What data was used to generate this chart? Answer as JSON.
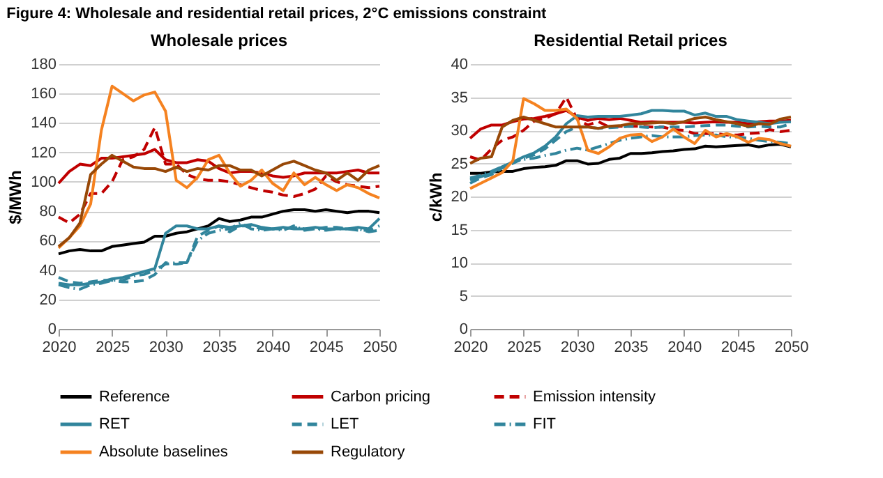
{
  "chart_data": [
    {
      "type": "line",
      "title": "Wholesale prices",
      "ylabel": "$/MWh",
      "annotations": [
        "Figure 4: Wholesale and residential retail prices, 2°C emissions constraint"
      ],
      "x": [
        2020,
        2021,
        2022,
        2023,
        2024,
        2025,
        2026,
        2027,
        2028,
        2029,
        2030,
        2031,
        2032,
        2033,
        2034,
        2035,
        2036,
        2037,
        2038,
        2039,
        2040,
        2041,
        2042,
        2043,
        2044,
        2045,
        2046,
        2047,
        2048,
        2049,
        2050
      ],
      "xlim": [
        2020,
        2050
      ],
      "xticks": [
        2020,
        2025,
        2030,
        2035,
        2040,
        2045,
        2050
      ],
      "ylim": [
        0,
        180
      ],
      "yticks": [
        0,
        20,
        40,
        60,
        80,
        100,
        120,
        140,
        160,
        180
      ],
      "grid": "y",
      "legend": "bottom",
      "marker": "none",
      "series": [
        {
          "name": "Reference",
          "color": "#000000",
          "line_style": "solid",
          "values": [
            51,
            53,
            54,
            53,
            53,
            56,
            57,
            58,
            59,
            63,
            63,
            65,
            66,
            68,
            70,
            75,
            73,
            74,
            76,
            76,
            78,
            80,
            81,
            81,
            80,
            81,
            80,
            79,
            80,
            80,
            79
          ]
        },
        {
          "name": "Carbon pricing",
          "color": "#c00000",
          "line_style": "solid",
          "values": [
            99,
            107,
            112,
            111,
            116,
            116,
            117,
            118,
            119,
            122,
            115,
            113,
            113,
            115,
            114,
            109,
            106,
            107,
            107,
            106,
            104,
            103,
            104,
            106,
            106,
            106,
            106,
            107,
            108,
            106,
            106
          ]
        },
        {
          "name": "Emission intensity",
          "color": "#c00000",
          "line_style": "dashed",
          "values": [
            76,
            72,
            78,
            92,
            92,
            100,
            115,
            117,
            122,
            137,
            112,
            112,
            105,
            102,
            101,
            101,
            100,
            98,
            96,
            94,
            93,
            91,
            90,
            92,
            95,
            104,
            100,
            98,
            97,
            96,
            97
          ]
        },
        {
          "name": "RET",
          "color": "#31859c",
          "line_style": "solid",
          "values": [
            31,
            30,
            30,
            31,
            32,
            34,
            35,
            37,
            39,
            41,
            65,
            70,
            70,
            68,
            68,
            70,
            69,
            70,
            71,
            69,
            68,
            69,
            68,
            68,
            69,
            68,
            68,
            68,
            69,
            68,
            75
          ]
        },
        {
          "name": "LET",
          "color": "#31859c",
          "line_style": "dashed",
          "values": [
            35,
            32,
            31,
            32,
            33,
            33,
            32,
            32,
            33,
            37,
            45,
            44,
            45,
            63,
            67,
            70,
            66,
            70,
            70,
            68,
            68,
            68,
            69,
            68,
            68,
            69,
            69,
            68,
            67,
            67,
            70
          ]
        },
        {
          "name": "FIT",
          "color": "#31859c",
          "line_style": "dashdot",
          "values": [
            30,
            28,
            27,
            30,
            31,
            33,
            33,
            36,
            37,
            40,
            44,
            45,
            45,
            60,
            65,
            67,
            68,
            72,
            68,
            67,
            68,
            67,
            70,
            67,
            68,
            67,
            68,
            68,
            68,
            66,
            67
          ]
        },
        {
          "name": "Absolute baselines",
          "color": "#f58220",
          "line_style": "solid",
          "values": [
            55,
            62,
            70,
            85,
            135,
            165,
            160,
            155,
            159,
            161,
            148,
            101,
            96,
            103,
            115,
            118,
            106,
            97,
            101,
            108,
            99,
            94,
            106,
            98,
            103,
            98,
            94,
            98,
            96,
            92,
            89
          ]
        },
        {
          "name": "Regulatory",
          "color": "#984807",
          "line_style": "solid",
          "values": [
            56,
            62,
            72,
            105,
            112,
            118,
            114,
            110,
            109,
            109,
            107,
            110,
            107,
            109,
            108,
            111,
            111,
            108,
            108,
            104,
            108,
            112,
            114,
            111,
            108,
            106,
            101,
            106,
            101,
            108,
            111
          ]
        }
      ]
    },
    {
      "type": "line",
      "title": "Residential Retail prices",
      "ylabel": "c/kWh",
      "x": [
        2020,
        2021,
        2022,
        2023,
        2024,
        2025,
        2026,
        2027,
        2028,
        2029,
        2030,
        2031,
        2032,
        2033,
        2034,
        2035,
        2036,
        2037,
        2038,
        2039,
        2040,
        2041,
        2042,
        2043,
        2044,
        2045,
        2046,
        2047,
        2048,
        2049,
        2050
      ],
      "xlim": [
        2020,
        2050
      ],
      "xticks": [
        2020,
        2025,
        2030,
        2035,
        2040,
        2045,
        2050
      ],
      "ylim": [
        0,
        40
      ],
      "yticks": [
        0,
        5,
        10,
        15,
        20,
        25,
        30,
        35,
        40
      ],
      "grid": "y",
      "legend": "bottom",
      "marker": "none",
      "series": [
        {
          "name": "Reference",
          "color": "#000000",
          "line_style": "solid",
          "values": [
            23.5,
            23.5,
            23.7,
            23.8,
            23.8,
            24.2,
            24.4,
            24.5,
            24.7,
            25.4,
            25.4,
            24.9,
            25.0,
            25.6,
            25.8,
            26.5,
            26.5,
            26.6,
            26.8,
            26.9,
            27.1,
            27.2,
            27.6,
            27.5,
            27.6,
            27.7,
            27.8,
            27.5,
            27.8,
            27.9,
            27.5
          ]
        },
        {
          "name": "Carbon pricing",
          "color": "#c00000",
          "line_style": "solid",
          "values": [
            28.8,
            30.2,
            30.8,
            30.8,
            31.3,
            31.7,
            31.8,
            32.1,
            32.5,
            33.0,
            32.0,
            31.5,
            31.8,
            31.6,
            31.8,
            31.5,
            31.2,
            31.3,
            31.2,
            31.2,
            31.2,
            31.1,
            31.2,
            31.3,
            31.2,
            31.2,
            31.0,
            31.3,
            31.4,
            31.4,
            31.5
          ]
        },
        {
          "name": "Emission intensity",
          "color": "#c00000",
          "line_style": "dashed",
          "values": [
            26.0,
            25.5,
            27.2,
            28.5,
            29.0,
            30.0,
            31.4,
            31.8,
            32.5,
            35.0,
            31.7,
            30.8,
            31.3,
            30.5,
            30.6,
            30.6,
            30.6,
            30.5,
            30.5,
            30.1,
            30.0,
            29.5,
            29.5,
            29.5,
            29.3,
            29.3,
            29.5,
            29.6,
            30.1,
            29.8,
            30.0
          ]
        },
        {
          "name": "RET",
          "color": "#31859c",
          "line_style": "solid",
          "values": [
            22.5,
            23.0,
            23.5,
            24.5,
            25.2,
            26.0,
            26.6,
            27.6,
            29.0,
            31.0,
            32.2,
            32.0,
            32.1,
            32.1,
            32.1,
            32.3,
            32.5,
            33.0,
            33.0,
            32.9,
            32.9,
            32.3,
            32.6,
            32.1,
            32.1,
            31.6,
            31.4,
            31.2,
            31.0,
            31.2,
            31.3
          ]
        },
        {
          "name": "LET",
          "color": "#31859c",
          "line_style": "dashed",
          "values": [
            22.0,
            22.8,
            23.3,
            24.3,
            25.0,
            25.8,
            26.3,
            27.2,
            28.5,
            29.8,
            30.5,
            30.5,
            30.3,
            30.4,
            30.5,
            30.6,
            30.5,
            30.4,
            30.5,
            30.5,
            30.5,
            30.6,
            30.7,
            30.8,
            30.8,
            30.6,
            30.5,
            30.6,
            30.5,
            30.5,
            31.0
          ]
        },
        {
          "name": "FIT",
          "color": "#31859c",
          "line_style": "dashdot",
          "values": [
            22.8,
            23.2,
            23.8,
            24.5,
            25.2,
            25.6,
            25.8,
            26.2,
            26.5,
            27.0,
            27.3,
            27.0,
            27.5,
            28.0,
            28.5,
            28.8,
            29.0,
            29.2,
            29.0,
            29.0,
            29.0,
            29.2,
            29.3,
            29.3,
            29.0,
            29.0,
            28.8,
            28.5,
            28.3,
            28.2,
            28.0
          ]
        },
        {
          "name": "Absolute baselines",
          "color": "#f58220",
          "line_style": "solid",
          "values": [
            21.2,
            22.0,
            22.8,
            23.6,
            25.4,
            34.8,
            34.0,
            33.0,
            33.0,
            33.2,
            31.8,
            27.0,
            26.5,
            27.5,
            28.8,
            29.3,
            29.4,
            28.3,
            29.0,
            30.2,
            29.0,
            28.0,
            30.0,
            29.0,
            29.5,
            29.0,
            28.2,
            28.8,
            28.6,
            28.0,
            27.6
          ]
        },
        {
          "name": "Regulatory",
          "color": "#984807",
          "line_style": "solid",
          "values": [
            25.0,
            25.8,
            26.0,
            30.5,
            31.5,
            32.0,
            31.5,
            31.0,
            30.5,
            30.5,
            30.5,
            30.5,
            30.3,
            30.6,
            30.7,
            31.0,
            31.0,
            31.1,
            31.2,
            31.0,
            31.3,
            31.8,
            32.0,
            31.6,
            31.3,
            31.0,
            30.6,
            31.0,
            30.9,
            31.7,
            32.0
          ]
        }
      ]
    }
  ]
}
